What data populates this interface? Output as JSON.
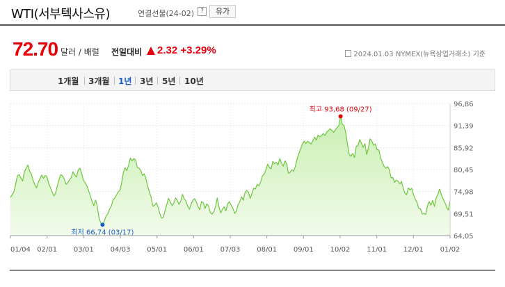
{
  "header": {
    "title": "WTI(서부텍사스유)",
    "subtitle": "연결선물(24-02)",
    "help_label": "?",
    "type_button": "유가"
  },
  "quote": {
    "price": "72.70",
    "unit": "달러 / 배럴",
    "change_label": "전일대비",
    "change_value": "2.32",
    "change_percent": "+3.29%",
    "info": "2024.01.03  NYMEX(뉴욕상업거래소) 기준"
  },
  "tabs": [
    {
      "label": "1개월",
      "active": false
    },
    {
      "label": "3개월",
      "active": false
    },
    {
      "label": "1년",
      "active": true
    },
    {
      "label": "3년",
      "active": false
    },
    {
      "label": "5년",
      "active": false
    },
    {
      "label": "10년",
      "active": false
    }
  ],
  "colors": {
    "up": "#e5000b",
    "line": "#6cc63c",
    "area_top": "#c8efb2",
    "area_bottom": "#f2fbea",
    "high_marker": "#e5000b",
    "low_marker": "#1a5ec4",
    "active_tab": "#1a5ec4"
  },
  "chart_data": {
    "type": "area",
    "ylim": [
      64.05,
      96.86
    ],
    "yticks": [
      "96,86",
      "91,39",
      "85,92",
      "80,45",
      "74,98",
      "69,51",
      "64,05"
    ],
    "xticks": [
      "01/04",
      "02/01",
      "03/01",
      "04/03",
      "05/01",
      "06/01",
      "07/03",
      "08/01",
      "09/01",
      "10/02",
      "11/01",
      "12/01",
      "01/02"
    ],
    "high_label": "최고 93,68 (09/27)",
    "low_label": "최저 66,74 (03/17)",
    "high": {
      "date": "09/27",
      "value": 93.68
    },
    "low": {
      "date": "03/17",
      "value": 66.74
    },
    "series": [
      {
        "values": [
          73.5,
          74.2,
          75.0,
          76.8,
          78.9,
          79.2,
          78.4,
          77.6,
          79.8,
          80.8,
          81.6,
          80.1,
          79.4,
          77.8,
          76.7,
          75.9,
          77.3,
          78.2,
          79.1,
          78.3,
          79.0,
          78.7,
          77.0,
          76.0,
          74.8,
          73.9,
          74.6,
          76.4,
          78.0,
          79.2,
          78.9,
          78.1,
          76.8,
          77.2,
          77.9,
          78.5,
          79.9,
          79.1,
          78.6,
          80.3,
          80.8,
          79.5,
          77.8,
          77.2,
          76.4,
          75.2,
          73.9,
          72.5,
          71.5,
          72.9,
          71.3,
          68.4,
          67.2,
          66.7,
          67.6,
          68.9,
          69.4,
          70.6,
          71.3,
          72.8,
          73.4,
          74.1,
          74.9,
          75.3,
          77.1,
          79.8,
          80.9,
          80.2,
          81.6,
          83.3,
          82.6,
          83.2,
          82.8,
          81.0,
          80.8,
          80.2,
          79.0,
          79.4,
          78.2,
          76.3,
          74.9,
          73.5,
          71.3,
          71.6,
          72.2,
          71.1,
          69.5,
          68.4,
          68.6,
          70.3,
          71.8,
          73.3,
          72.4,
          71.5,
          72.1,
          73.4,
          72.8,
          71.8,
          72.6,
          74.3,
          73.2,
          72.6,
          71.4,
          70.6,
          71.9,
          72.8,
          73.2,
          72.4,
          71.2,
          70.5,
          72.5,
          72.2,
          70.8,
          71.9,
          71.4,
          69.8,
          69.4,
          69.9,
          71.2,
          73.4,
          71.2,
          69.7,
          70.6,
          71.2,
          70.2,
          71.9,
          72.5,
          71.6,
          70.9,
          69.6,
          70.1,
          71.7,
          72.4,
          73.7,
          72.8,
          74.7,
          75.3,
          74.8,
          73.3,
          74.5,
          75.8,
          75.6,
          76.8,
          76.4,
          77.4,
          78.9,
          79.3,
          80.4,
          81.8,
          81.1,
          80.6,
          82.5,
          81.9,
          82.3,
          81.6,
          83.2,
          82.1,
          81.3,
          82.6,
          81.9,
          79.5,
          79.8,
          80.4,
          80.1,
          81.3,
          83.2,
          84.4,
          85.6,
          86.8,
          87.5,
          86.9,
          87.5,
          87.2,
          86.8,
          87.6,
          88.5,
          87.8,
          89.0,
          88.6,
          88.9,
          89.4,
          88.9,
          89.8,
          90.1,
          90.6,
          90.2,
          89.7,
          90.3,
          90.9,
          91.4,
          93.7,
          91.7,
          91.4,
          89.6,
          86.7,
          84.2,
          83.8,
          84.5,
          83.4,
          86.2,
          86.4,
          87.9,
          87.0,
          86.0,
          86.9,
          84.2,
          85.8,
          88.1,
          87.5,
          86.5,
          86.8,
          85.4,
          85.3,
          83.4,
          82.3,
          81.3,
          80.8,
          81.2,
          80.5,
          78.4,
          78.5,
          77.3,
          77.8,
          77.6,
          76.9,
          77.5,
          75.9,
          74.6,
          74.2,
          75.9,
          75.4,
          75.8,
          74.2,
          73.1,
          72.3,
          70.8,
          70.7,
          69.4,
          69.6,
          69.3,
          71.4,
          72.5,
          71.6,
          72.8,
          71.3,
          73.4,
          74.3,
          75.6,
          74.2,
          73.2,
          72.3,
          71.1,
          70.4,
          72.7
        ]
      }
    ]
  }
}
